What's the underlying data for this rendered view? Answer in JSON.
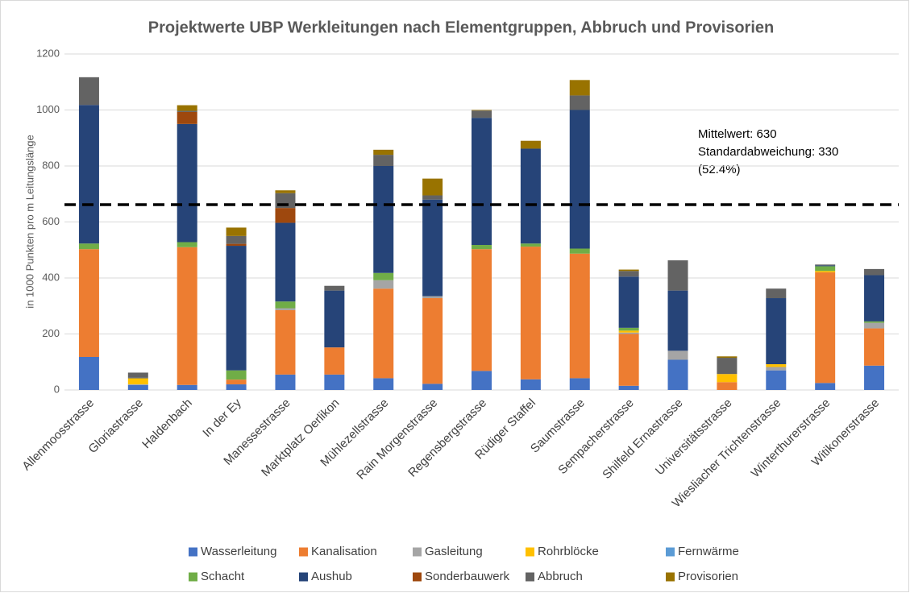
{
  "chart_data": {
    "type": "stacked_bar",
    "title": "Projektwerte UBP Werkleitungen nach Elementgruppen, Abbruch und Provisorien",
    "y_label": "in 1000 Punkten pro m Leitungslänge",
    "annotation": [
      "Mittelwert: 630",
      "Standardabweichung: 330",
      "(52.4%)"
    ],
    "reference_line": 662,
    "categories": [
      "Allenmoosstrasse",
      "Gloriastrasse",
      "Haldenbach",
      "In der Ey",
      "Manessestrasse",
      "Marktplatz Oerlikon",
      "Mühlezellstrasse",
      "Rain Morgenstrasse",
      "Regensbergstrasse",
      "Rüdiger Staffel",
      "Saumstrasse",
      "Sempacherstrasse",
      "Shilfeld Ernastrasse",
      "Universitätsstrasse",
      "Wiesliacher Trichtenstrasse",
      "Winterthurerstrasse",
      "Witikonerstrasse"
    ],
    "series": [
      {
        "name": "Wasserleitung",
        "color": "#4472c4",
        "values": [
          118,
          18,
          18,
          20,
          55,
          55,
          42,
          22,
          68,
          38,
          42,
          15,
          108,
          0,
          70,
          25,
          87
        ]
      },
      {
        "name": "Kanalisation",
        "color": "#ed7d31",
        "values": [
          385,
          0,
          492,
          17,
          230,
          97,
          320,
          306,
          435,
          474,
          445,
          185,
          0,
          28,
          0,
          395,
          133
        ]
      },
      {
        "name": "Gasleitung",
        "color": "#a5a5a5",
        "values": [
          0,
          2,
          0,
          0,
          7,
          0,
          30,
          7,
          0,
          0,
          0,
          5,
          32,
          0,
          12,
          0,
          20
        ]
      },
      {
        "name": "Rohrblöcke",
        "color": "#ffc000",
        "values": [
          0,
          22,
          0,
          0,
          0,
          0,
          0,
          0,
          0,
          0,
          0,
          7,
          0,
          29,
          10,
          5,
          0
        ]
      },
      {
        "name": "Fernwärme",
        "color": "#5b9bd5",
        "values": [
          0,
          0,
          0,
          0,
          0,
          0,
          0,
          0,
          0,
          0,
          0,
          0,
          0,
          0,
          0,
          0,
          0
        ]
      },
      {
        "name": "Schacht",
        "color": "#70ad47",
        "values": [
          20,
          0,
          18,
          33,
          24,
          0,
          26,
          0,
          15,
          11,
          18,
          10,
          0,
          0,
          0,
          17,
          5
        ]
      },
      {
        "name": "Aushub",
        "color": "#264478",
        "values": [
          495,
          2,
          422,
          445,
          281,
          203,
          382,
          345,
          454,
          339,
          495,
          183,
          215,
          0,
          236,
          3,
          165
        ]
      },
      {
        "name": "Sonderbauwerk",
        "color": "#9e480e",
        "values": [
          0,
          0,
          43,
          7,
          53,
          0,
          0,
          0,
          0,
          0,
          0,
          0,
          0,
          0,
          0,
          0,
          0
        ]
      },
      {
        "name": "Abbruch",
        "color": "#636363",
        "values": [
          99,
          18,
          4,
          28,
          53,
          17,
          40,
          15,
          26,
          0,
          52,
          20,
          108,
          58,
          34,
          3,
          22
        ]
      },
      {
        "name": "Provisorien",
        "color": "#997300",
        "values": [
          0,
          0,
          20,
          30,
          10,
          0,
          18,
          60,
          2,
          28,
          55,
          5,
          0,
          5,
          0,
          0,
          0
        ]
      }
    ],
    "ylim": [
      0,
      1200
    ],
    "yticks": [
      0,
      200,
      400,
      600,
      800,
      1000,
      1200
    ],
    "grid": true
  }
}
